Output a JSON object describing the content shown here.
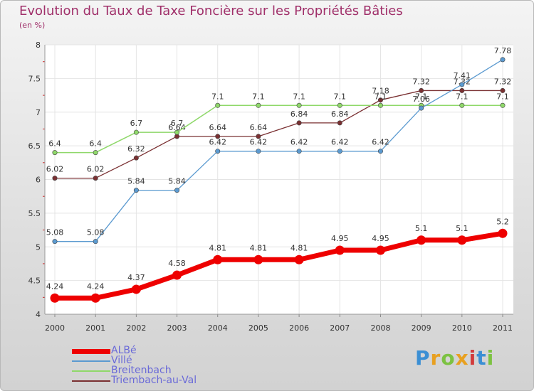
{
  "chart_data": {
    "type": "line",
    "title": "Evolution du Taux de Taxe Foncière sur les Propriétés Bâties",
    "subtitle": "(en %)",
    "x": [
      "2000",
      "2001",
      "2002",
      "2003",
      "2004",
      "2005",
      "2006",
      "2007",
      "2008",
      "2009",
      "2010",
      "2011"
    ],
    "yticks": [
      "4",
      "4.5",
      "5",
      "5.5",
      "6",
      "6.5",
      "7",
      "7.5",
      "8"
    ],
    "ylim": [
      4,
      8
    ],
    "series": [
      {
        "name": "Triembach-au-Val",
        "color": "#7a3032",
        "width": 1.3,
        "values": [
          6.02,
          6.02,
          6.32,
          6.64,
          6.64,
          6.64,
          6.84,
          6.84,
          7.18,
          7.32,
          7.32,
          7.32
        ],
        "labels": [
          "6.02",
          "6.02",
          "6.32",
          "6.64",
          "6.64",
          "6.64",
          "6.84",
          "6.84",
          "7.18",
          "7.32",
          "7.32",
          "7.32"
        ]
      },
      {
        "name": "Breitenbach",
        "color": "#8fd86a",
        "width": 1.5,
        "values": [
          6.4,
          6.4,
          6.7,
          6.7,
          7.1,
          7.1,
          7.1,
          7.1,
          7.1,
          7.1,
          7.1,
          7.1
        ],
        "labels": [
          "6.4",
          "6.4",
          "6.7",
          "6.7",
          "7.1",
          "7.1",
          "7.1",
          "7.1",
          "7.1",
          "7.1",
          "7.1",
          "7.1"
        ]
      },
      {
        "name": "Villé",
        "color": "#5b9ad0",
        "width": 1.3,
        "values": [
          5.08,
          5.08,
          5.84,
          5.84,
          6.42,
          6.42,
          6.42,
          6.42,
          6.42,
          7.06,
          7.41,
          7.78
        ],
        "labels": [
          "5.08",
          "5.08",
          "5.84",
          "5.84",
          "6.42",
          "6.42",
          "6.42",
          "6.42",
          "6.42",
          "7.06",
          "7.41",
          "7.78"
        ]
      },
      {
        "name": "ALBé",
        "color": "#ee0000",
        "width": 7,
        "values": [
          4.24,
          4.24,
          4.37,
          4.58,
          4.81,
          4.81,
          4.81,
          4.95,
          4.95,
          5.1,
          5.1,
          5.2
        ],
        "labels": [
          "4.24",
          "4.24",
          "4.37",
          "4.58",
          "4.81",
          "4.81",
          "4.81",
          "4.95",
          "4.95",
          "5.1",
          "5.1",
          "5.2"
        ]
      }
    ]
  },
  "legend": [
    {
      "name": "ALBé",
      "color": "#ee0000"
    },
    {
      "name": "Villé",
      "color": "#5b9ad0"
    },
    {
      "name": "Breitenbach",
      "color": "#8fd86a"
    },
    {
      "name": "Triembach-au-Val",
      "color": "#7a3032"
    }
  ],
  "logo": {
    "text": "Proxiti",
    "colors": [
      "#3b8fd4",
      "#e8a020",
      "#7cc242",
      "#e8a020",
      "#d23c3c",
      "#3b8fd4",
      "#7cc242"
    ]
  }
}
